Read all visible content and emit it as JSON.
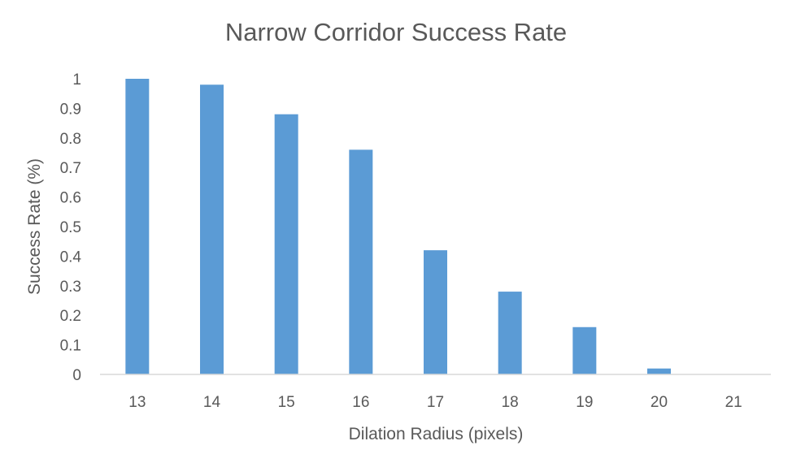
{
  "chart_data": {
    "type": "bar",
    "title": "Narrow Corridor Success Rate",
    "xlabel": "Dilation Radius (pixels)",
    "ylabel": "Success Rate (%)",
    "categories": [
      "13",
      "14",
      "15",
      "16",
      "17",
      "18",
      "19",
      "20",
      "21"
    ],
    "series": [
      {
        "values": [
          1.0,
          0.98,
          0.88,
          0.76,
          0.42,
          0.28,
          0.16,
          0.02,
          0.0
        ]
      }
    ],
    "ylim": [
      0,
      1
    ],
    "yticks": [
      "0",
      "0.1",
      "0.2",
      "0.3",
      "0.4",
      "0.5",
      "0.6",
      "0.7",
      "0.8",
      "0.9",
      "1"
    ],
    "grid": false,
    "legend": "none",
    "colors": {
      "bar": "#5B9BD5",
      "text": "#595959",
      "axis": "#D9D9D9"
    }
  }
}
